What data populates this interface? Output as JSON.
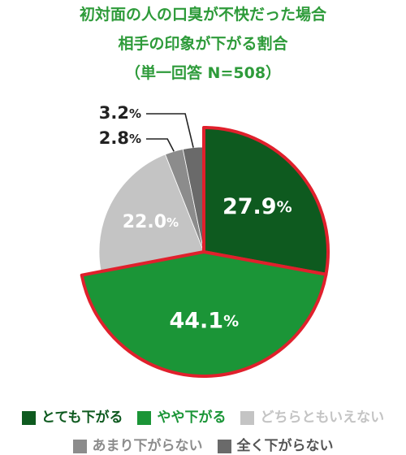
{
  "header": {
    "line1": "初対面の人の口臭が不快だった場合",
    "line2": "相手の印象が下がる割合",
    "line3": "（単一回答 N=508）"
  },
  "chart_data": {
    "type": "pie",
    "categories": [
      "とても下がる",
      "やや下がる",
      "どちらともいえない",
      "あまり下がらない",
      "全く下がらない"
    ],
    "values": [
      27.9,
      44.1,
      22.0,
      2.8,
      3.2
    ],
    "value_labels": [
      "27.9",
      "44.1",
      "22.0",
      "2.8",
      "3.2"
    ],
    "unit": "%",
    "colors": [
      "#0e5a1f",
      "#1b9537",
      "#c4c4c4",
      "#8c8c8c",
      "#6a6a6a"
    ],
    "legend_text_colors": [
      "#0e5a1f",
      "#1b9537",
      "#c4c4c4",
      "#8c8c8c",
      "#6a6a6a"
    ],
    "label_colors": [
      "#ffffff",
      "#ffffff",
      "#ffffff",
      "#222222",
      "#222222"
    ],
    "highlighted": [
      0,
      1
    ],
    "highlight_color": "#e0202c",
    "start_angle_deg": 0,
    "direction": "clockwise",
    "legend_position": "bottom"
  },
  "legend": {
    "rows": [
      [
        {
          "label": "とても下がる",
          "color": "#0e5a1f",
          "text_color": "#0e5a1f"
        },
        {
          "label": "やや下がる",
          "color": "#1b9537",
          "text_color": "#1b9537"
        },
        {
          "label": "どちらともいえない",
          "color": "#c4c4c4",
          "text_color": "#c4c4c4"
        }
      ],
      [
        {
          "label": "あまり下がらない",
          "color": "#8c8c8c",
          "text_color": "#8c8c8c"
        },
        {
          "label": "全く下がらない",
          "color": "#6a6a6a",
          "text_color": "#555555"
        }
      ]
    ]
  }
}
